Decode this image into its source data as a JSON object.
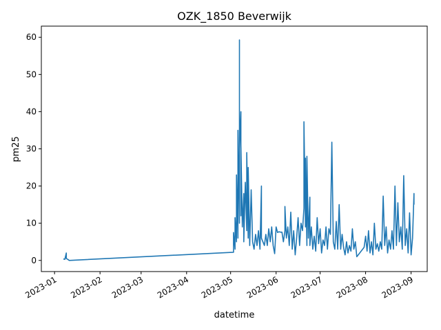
{
  "chart_data": {
    "type": "line",
    "title": "OZK_1850 Beverwijk",
    "xlabel": "datetime",
    "ylabel": "pm25",
    "xlim": [
      "2022-12-23",
      "2023-09-12"
    ],
    "ylim": [
      -3,
      63
    ],
    "x_ticks": [
      "2023-01",
      "2023-02",
      "2023-03",
      "2023-04",
      "2023-05",
      "2023-06",
      "2023-07",
      "2023-08",
      "2023-09"
    ],
    "y_ticks": [
      0,
      10,
      20,
      30,
      40,
      50,
      60
    ],
    "grid": false,
    "series": [
      {
        "color": "#1f77b4",
        "points": [
          [
            "2023-01-07",
            0.4
          ],
          [
            "2023-01-08",
            0.3
          ],
          [
            "2023-01-09",
            2.0
          ],
          [
            "2023-01-09",
            0.5
          ],
          [
            "2023-01-10",
            0.3
          ],
          [
            "2023-01-11",
            0.0
          ],
          [
            "2023-05-03",
            2.2
          ],
          [
            "2023-05-03",
            7.5
          ],
          [
            "2023-05-04",
            3.0
          ],
          [
            "2023-05-04",
            11.5
          ],
          [
            "2023-05-05",
            5.0
          ],
          [
            "2023-05-05",
            23.0
          ],
          [
            "2023-05-06",
            6.0
          ],
          [
            "2023-05-06",
            35.0
          ],
          [
            "2023-05-07",
            10.0
          ],
          [
            "2023-05-07",
            59.3
          ],
          [
            "2023-05-07",
            30.0
          ],
          [
            "2023-05-08",
            40.0
          ],
          [
            "2023-05-08",
            12.0
          ],
          [
            "2023-05-08",
            31.0
          ],
          [
            "2023-05-09",
            9.0
          ],
          [
            "2023-05-10",
            18.0
          ],
          [
            "2023-05-10",
            5.0
          ],
          [
            "2023-05-11",
            21.0
          ],
          [
            "2023-05-12",
            8.0
          ],
          [
            "2023-05-12",
            29.0
          ],
          [
            "2023-05-13",
            6.0
          ],
          [
            "2023-05-13",
            25.0
          ],
          [
            "2023-05-14",
            4.0
          ],
          [
            "2023-05-15",
            19.0
          ],
          [
            "2023-05-16",
            5.0
          ],
          [
            "2023-05-17",
            3.0
          ],
          [
            "2023-05-18",
            7.0
          ],
          [
            "2023-05-19",
            4.0
          ],
          [
            "2023-05-20",
            8.0
          ],
          [
            "2023-05-21",
            3.0
          ],
          [
            "2023-05-22",
            20.0
          ],
          [
            "2023-05-22",
            6.0
          ],
          [
            "2023-05-23",
            5.0
          ],
          [
            "2023-05-24",
            4.0
          ],
          [
            "2023-05-25",
            7.0
          ],
          [
            "2023-05-26",
            4.0
          ],
          [
            "2023-05-27",
            8.5
          ],
          [
            "2023-05-28",
            5.0
          ],
          [
            "2023-05-29",
            9.0
          ],
          [
            "2023-05-30",
            4.0
          ],
          [
            "2023-05-31",
            1.8
          ],
          [
            "2023-06-01",
            9.0
          ],
          [
            "2023-06-02",
            7.5
          ],
          [
            "2023-06-03",
            7.7
          ],
          [
            "2023-06-04",
            7.6
          ],
          [
            "2023-06-05",
            7.6
          ],
          [
            "2023-06-06",
            5.0
          ],
          [
            "2023-06-07",
            8.0
          ],
          [
            "2023-06-07",
            14.5
          ],
          [
            "2023-06-08",
            6.0
          ],
          [
            "2023-06-09",
            9.0
          ],
          [
            "2023-06-10",
            4.0
          ],
          [
            "2023-06-11",
            13.0
          ],
          [
            "2023-06-12",
            3.0
          ],
          [
            "2023-06-13",
            8.0
          ],
          [
            "2023-06-14",
            1.5
          ],
          [
            "2023-06-15",
            6.0
          ],
          [
            "2023-06-16",
            11.5
          ],
          [
            "2023-06-17",
            4.0
          ],
          [
            "2023-06-18",
            10.0
          ],
          [
            "2023-06-19",
            8.0
          ],
          [
            "2023-06-20",
            14.0
          ],
          [
            "2023-06-20",
            37.3
          ],
          [
            "2023-06-21",
            9.0
          ],
          [
            "2023-06-21",
            27.5
          ],
          [
            "2023-06-22",
            4.0
          ],
          [
            "2023-06-22",
            28.0
          ],
          [
            "2023-06-23",
            6.0
          ],
          [
            "2023-06-24",
            17.0
          ],
          [
            "2023-06-24",
            4.0
          ],
          [
            "2023-06-25",
            9.0
          ],
          [
            "2023-06-26",
            3.0
          ],
          [
            "2023-06-27",
            6.5
          ],
          [
            "2023-06-28",
            2.5
          ],
          [
            "2023-06-29",
            11.5
          ],
          [
            "2023-06-30",
            4.5
          ],
          [
            "2023-07-01",
            8.5
          ],
          [
            "2023-07-02",
            2.0
          ],
          [
            "2023-07-03",
            5.5
          ],
          [
            "2023-07-04",
            4.0
          ],
          [
            "2023-07-05",
            9.0
          ],
          [
            "2023-07-06",
            3.0
          ],
          [
            "2023-07-07",
            8.5
          ],
          [
            "2023-07-08",
            7.0
          ],
          [
            "2023-07-09",
            31.8
          ],
          [
            "2023-07-10",
            5.0
          ],
          [
            "2023-07-11",
            3.0
          ],
          [
            "2023-07-12",
            10.5
          ],
          [
            "2023-07-13",
            3.0
          ],
          [
            "2023-07-14",
            15.0
          ],
          [
            "2023-07-15",
            3.0
          ],
          [
            "2023-07-16",
            7.0
          ],
          [
            "2023-07-17",
            3.5
          ],
          [
            "2023-07-18",
            1.5
          ],
          [
            "2023-07-19",
            5.0
          ],
          [
            "2023-07-20",
            2.0
          ],
          [
            "2023-07-21",
            4.0
          ],
          [
            "2023-07-22",
            2.5
          ],
          [
            "2023-07-23",
            8.5
          ],
          [
            "2023-07-24",
            3.0
          ],
          [
            "2023-07-25",
            5.0
          ],
          [
            "2023-07-26",
            1.0
          ],
          [
            "2023-07-27",
            1.5
          ],
          [
            "2023-07-31",
            3.5
          ],
          [
            "2023-08-01",
            6.5
          ],
          [
            "2023-08-02",
            2.5
          ],
          [
            "2023-08-03",
            8.0
          ],
          [
            "2023-08-04",
            2.0
          ],
          [
            "2023-08-05",
            5.0
          ],
          [
            "2023-08-06",
            1.5
          ],
          [
            "2023-08-07",
            10.0
          ],
          [
            "2023-08-08",
            3.0
          ],
          [
            "2023-08-09",
            4.5
          ],
          [
            "2023-08-10",
            2.5
          ],
          [
            "2023-08-11",
            5.0
          ],
          [
            "2023-08-12",
            3.0
          ],
          [
            "2023-08-13",
            17.3
          ],
          [
            "2023-08-14",
            4.0
          ],
          [
            "2023-08-15",
            9.0
          ],
          [
            "2023-08-16",
            2.0
          ],
          [
            "2023-08-17",
            5.5
          ],
          [
            "2023-08-18",
            3.0
          ],
          [
            "2023-08-19",
            8.0
          ],
          [
            "2023-08-20",
            3.0
          ],
          [
            "2023-08-21",
            20.0
          ],
          [
            "2023-08-22",
            4.0
          ],
          [
            "2023-08-23",
            15.5
          ],
          [
            "2023-08-24",
            5.0
          ],
          [
            "2023-08-25",
            9.0
          ],
          [
            "2023-08-26",
            3.0
          ],
          [
            "2023-08-27",
            22.8
          ],
          [
            "2023-08-28",
            4.0
          ],
          [
            "2023-08-29",
            8.5
          ],
          [
            "2023-08-30",
            2.0
          ],
          [
            "2023-08-31",
            12.8
          ],
          [
            "2023-09-01",
            1.5
          ],
          [
            "2023-09-02",
            6.0
          ],
          [
            "2023-09-03",
            18.0
          ],
          [
            "2023-09-03",
            15.0
          ]
        ]
      }
    ]
  }
}
